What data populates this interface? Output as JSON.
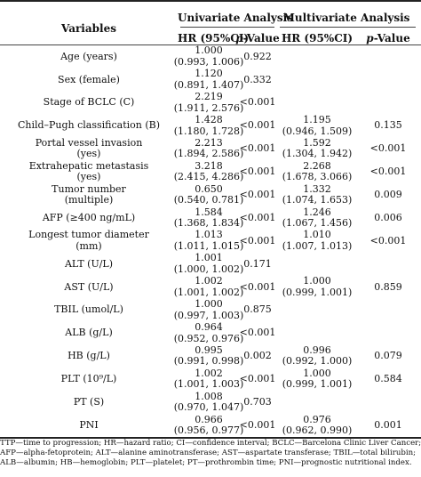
{
  "header": {
    "variables": "Variables",
    "univariate": "Univariate Analysis",
    "multivariate": "Multivariate Analysis",
    "hr": "HR (95%CI)",
    "p_italic": "p",
    "p_suffix": "-Value"
  },
  "rows": [
    {
      "var": [
        "Age (years)"
      ],
      "hr1": [
        "1.000",
        "(0.993, 1.006)"
      ],
      "p1": "0.922",
      "hr2": [],
      "p2": ""
    },
    {
      "var": [
        "Sex (female)"
      ],
      "hr1": [
        "1.120",
        "(0.891, 1.407)"
      ],
      "p1": "0.332",
      "hr2": [],
      "p2": ""
    },
    {
      "var": [
        "Stage of BCLC (C)"
      ],
      "hr1": [
        "2.219",
        "(1.911, 2.576)"
      ],
      "p1": "<0.001",
      "hr2": [],
      "p2": ""
    },
    {
      "var": [
        "Child–Pugh classification (B)"
      ],
      "hr1": [
        "1.428",
        "(1.180, 1.728)"
      ],
      "p1": "<0.001",
      "hr2": [
        "1.195",
        "(0.946, 1.509)"
      ],
      "p2": "0.135"
    },
    {
      "var": [
        "Portal vessel invasion",
        "(yes)"
      ],
      "hr1": [
        "2.213",
        "(1.894, 2.586)"
      ],
      "p1": "<0.001",
      "hr2": [
        "1.592",
        "(1.304, 1.942)"
      ],
      "p2": "<0.001"
    },
    {
      "var": [
        "Extrahepatic metastasis",
        "(yes)"
      ],
      "hr1": [
        "3.218",
        "(2.415, 4.286)"
      ],
      "p1": "<0.001",
      "hr2": [
        "2.268",
        "(1.678, 3.066)"
      ],
      "p2": "<0.001"
    },
    {
      "var": [
        "Tumor number",
        "(multiple)"
      ],
      "hr1": [
        "0.650",
        "(0.540, 0.781)"
      ],
      "p1": "<0.001",
      "hr2": [
        "1.332",
        "(1.074, 1.653)"
      ],
      "p2": "0.009"
    },
    {
      "var": [
        "AFP (≥400 ng/mL)"
      ],
      "hr1": [
        "1.584",
        "(1.368, 1.834)"
      ],
      "p1": "<0.001",
      "hr2": [
        "1.246",
        "(1.067, 1.456)"
      ],
      "p2": "0.006"
    },
    {
      "var": [
        "Longest tumor diameter",
        "(mm)"
      ],
      "hr1": [
        "1.013",
        "(1.011, 1.015)"
      ],
      "p1": "<0.001",
      "hr2": [
        "1.010",
        "(1.007, 1.013)"
      ],
      "p2": "<0.001"
    },
    {
      "var": [
        "ALT (U/L)"
      ],
      "hr1": [
        "1.001",
        "(1.000, 1.002)"
      ],
      "p1": "0.171",
      "hr2": [],
      "p2": ""
    },
    {
      "var": [
        "AST (U/L)"
      ],
      "hr1": [
        "1.002",
        "(1.001, 1.002)"
      ],
      "p1": "<0.001",
      "hr2": [
        "1.000",
        "(0.999, 1.001)"
      ],
      "p2": "0.859"
    },
    {
      "var": [
        "TBIL (umol/L)"
      ],
      "hr1": [
        "1.000",
        "(0.997, 1.003)"
      ],
      "p1": "0.875",
      "hr2": [],
      "p2": ""
    },
    {
      "var": [
        "ALB (g/L)"
      ],
      "hr1": [
        "0.964",
        "(0.952, 0.976)"
      ],
      "p1": "<0.001",
      "hr2": [],
      "p2": ""
    },
    {
      "var": [
        "HB (g/L)"
      ],
      "hr1": [
        "0.995",
        "(0.991, 0.998)"
      ],
      "p1": "0.002",
      "hr2": [
        "0.996",
        "(0.992, 1.000)"
      ],
      "p2": "0.079"
    },
    {
      "var": [
        "PLT (10⁹/L)"
      ],
      "hr1": [
        "1.002",
        "(1.001, 1.003)"
      ],
      "p1": "<0.001",
      "hr2": [
        "1.000",
        "(0.999, 1.001)"
      ],
      "p2": "0.584"
    },
    {
      "var": [
        "PT (S)"
      ],
      "hr1": [
        "1.008",
        "(0.970, 1.047)"
      ],
      "p1": "0.703",
      "hr2": [],
      "p2": ""
    },
    {
      "var": [
        "PNI"
      ],
      "hr1": [
        "0.966",
        "(0.956, 0.977)"
      ],
      "p1": "<0.001",
      "hr2": [
        "0.976",
        "(0.962, 0.990)"
      ],
      "p2": "0.001"
    }
  ],
  "footnote": [
    "TTP—time to progression; HR—hazard ratio; CI—confidence interval; BCLC—Barcelona Clinic Liver Cancer;",
    "AFP—alpha-fetoprotein; ALT—alanine aminotransferase; AST—aspartate transferase; TBIL—total bilirubin;",
    "ALB—albumin; HB—hemoglobin; PLT—platelet; PT—prothrombin time; PNI—prognostic nutritional index."
  ]
}
